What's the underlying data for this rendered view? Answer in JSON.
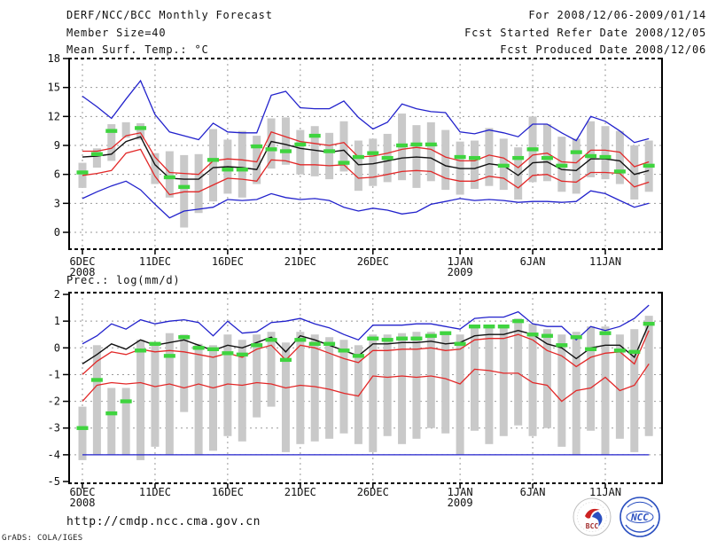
{
  "header": {
    "left": [
      "DERF/NCC/BCC Monthly Forecast",
      "Member Size=40",
      "Mean Surf. Temp.: °C"
    ],
    "right": [
      "For 2008/12/06-2009/01/14",
      "Fcst Started Refer Date 2008/12/05",
      "Fcst Produced Date 2008/12/06"
    ]
  },
  "footer": {
    "url": "http://cmdp.ncc.cma.gov.cn",
    "credit": "GrADS: COLA/IGES",
    "logos": [
      "BCC",
      "NCC"
    ]
  },
  "colors": {
    "blue": "#2222cc",
    "red": "#e22828",
    "black": "#111111",
    "green": "#3fd43f",
    "bar": "#c9c9c9",
    "grid": "#999999",
    "frame": "#000000",
    "logo_blue": "#2a4fc0",
    "logo_red": "#cc2222"
  },
  "chart_data": [
    {
      "type": "line",
      "title": "Mean Surf. Temp.: °C",
      "xlabel": "",
      "ylabel": "Mean Surf. Temp.: °C",
      "ylim": [
        -1.7,
        18
      ],
      "yticks": [
        0,
        3,
        6,
        9,
        12,
        15,
        18
      ],
      "grid": true,
      "legend": "none",
      "x": [
        "6DEC",
        "7DEC",
        "8DEC",
        "9DEC",
        "10DEC",
        "11DEC",
        "12DEC",
        "13DEC",
        "14DEC",
        "15DEC",
        "16DEC",
        "17DEC",
        "18DEC",
        "19DEC",
        "20DEC",
        "21DEC",
        "22DEC",
        "23DEC",
        "24DEC",
        "25DEC",
        "26DEC",
        "27DEC",
        "28DEC",
        "29DEC",
        "30DEC",
        "31DEC",
        "1JAN",
        "2JAN",
        "3JAN",
        "4JAN",
        "5JAN",
        "6JAN",
        "7JAN",
        "8JAN",
        "9JAN",
        "10JAN",
        "11JAN",
        "12JAN",
        "13JAN",
        "14JAN"
      ],
      "xticks": [
        {
          "label": "6DEC",
          "sub": "2008",
          "day": 0
        },
        {
          "label": "11DEC",
          "day": 5
        },
        {
          "label": "16DEC",
          "day": 10
        },
        {
          "label": "21DEC",
          "day": 15
        },
        {
          "label": "26DEC",
          "day": 20
        },
        {
          "label": "1JAN",
          "sub": "2009",
          "day": 26
        },
        {
          "label": "6JAN",
          "day": 31
        },
        {
          "label": "11JAN",
          "day": 36
        }
      ],
      "series": [
        {
          "name": "upper-envelope",
          "color_key": "blue",
          "values": [
            14.1,
            13.0,
            11.8,
            13.8,
            15.7,
            12.2,
            10.4,
            10.0,
            9.6,
            11.3,
            10.4,
            10.3,
            10.3,
            14.2,
            14.6,
            12.9,
            12.8,
            12.8,
            13.6,
            11.9,
            10.7,
            11.4,
            13.3,
            12.8,
            12.5,
            12.4,
            10.4,
            10.2,
            10.6,
            10.3,
            9.9,
            11.2,
            11.2,
            10.3,
            9.5,
            12.0,
            11.5,
            10.5,
            9.3,
            9.7
          ]
        },
        {
          "name": "upper-tercile",
          "color_key": "red",
          "values": [
            8.4,
            8.4,
            8.7,
            10.0,
            10.3,
            7.8,
            6.2,
            6.1,
            6.0,
            7.4,
            7.6,
            7.5,
            7.3,
            10.4,
            9.9,
            9.4,
            9.2,
            9.0,
            9.3,
            7.8,
            7.9,
            8.2,
            8.6,
            8.8,
            8.6,
            7.8,
            7.4,
            7.4,
            8.0,
            7.7,
            6.7,
            8.0,
            8.2,
            7.3,
            7.2,
            8.5,
            8.5,
            8.3,
            6.8,
            7.3
          ]
        },
        {
          "name": "ensemble-mean",
          "color_key": "black",
          "values": [
            7.8,
            7.9,
            8.1,
            9.4,
            9.9,
            7.0,
            5.6,
            5.5,
            5.5,
            6.7,
            6.8,
            6.7,
            6.5,
            9.4,
            9.1,
            8.7,
            8.5,
            8.3,
            8.5,
            7.0,
            7.1,
            7.4,
            7.7,
            7.8,
            7.7,
            6.9,
            6.6,
            6.6,
            7.1,
            6.9,
            5.9,
            7.2,
            7.3,
            6.5,
            6.4,
            7.6,
            7.6,
            7.4,
            6.0,
            6.4
          ]
        },
        {
          "name": "lower-tercile",
          "color_key": "red",
          "values": [
            5.9,
            6.1,
            6.4,
            8.2,
            8.6,
            5.8,
            3.9,
            4.2,
            4.2,
            4.9,
            5.6,
            5.5,
            5.3,
            7.5,
            7.4,
            7.0,
            7.0,
            6.9,
            7.0,
            5.6,
            5.7,
            6.0,
            6.3,
            6.4,
            6.3,
            5.6,
            5.3,
            5.3,
            5.8,
            5.6,
            4.6,
            5.9,
            6.0,
            5.3,
            5.2,
            6.2,
            6.2,
            6.1,
            4.7,
            5.2
          ]
        },
        {
          "name": "lower-envelope",
          "color_key": "blue",
          "values": [
            3.5,
            4.2,
            4.8,
            5.3,
            4.4,
            2.9,
            1.5,
            2.2,
            2.4,
            2.6,
            3.4,
            3.3,
            3.4,
            4.0,
            3.6,
            3.4,
            3.5,
            3.3,
            2.6,
            2.2,
            2.5,
            2.3,
            1.9,
            2.1,
            2.9,
            3.2,
            3.5,
            3.3,
            3.4,
            3.3,
            3.1,
            3.2,
            3.2,
            3.1,
            3.2,
            4.3,
            4.0,
            3.3,
            2.6,
            3.0
          ]
        }
      ],
      "observation_marks": {
        "name": "green-dash-marks",
        "color_key": "green",
        "values": [
          6.2,
          8.1,
          10.5,
          null,
          10.8,
          null,
          5.7,
          4.7,
          null,
          7.5,
          6.5,
          6.5,
          8.9,
          8.6,
          8.4,
          9.1,
          10.0,
          8.4,
          7.2,
          7.8,
          8.2,
          7.7,
          9.0,
          9.1,
          9.1,
          null,
          7.8,
          7.7,
          null,
          6.9,
          7.7,
          8.6,
          7.7,
          6.9,
          8.3,
          7.9,
          7.8,
          6.3,
          null,
          6.9
        ]
      },
      "spread_bars": [
        [
          4.6,
          7.2
        ],
        [
          6.7,
          8.7
        ],
        [
          7.4,
          11.2
        ],
        [
          9.8,
          11.4
        ],
        [
          9.6,
          11.3
        ],
        [
          5.0,
          8.2
        ],
        [
          3.6,
          8.4
        ],
        [
          0.5,
          8.0
        ],
        [
          2.0,
          8.1
        ],
        [
          3.2,
          10.7
        ],
        [
          4.0,
          9.6
        ],
        [
          3.6,
          10.5
        ],
        [
          5.0,
          10.0
        ],
        [
          6.6,
          11.8
        ],
        [
          7.0,
          11.9
        ],
        [
          6.0,
          10.6
        ],
        [
          5.8,
          11.0
        ],
        [
          5.5,
          10.3
        ],
        [
          6.3,
          11.5
        ],
        [
          4.3,
          9.5
        ],
        [
          4.8,
          9.7
        ],
        [
          5.2,
          10.2
        ],
        [
          5.4,
          12.3
        ],
        [
          4.6,
          11.1
        ],
        [
          5.3,
          11.4
        ],
        [
          4.4,
          10.6
        ],
        [
          3.9,
          9.4
        ],
        [
          4.5,
          9.5
        ],
        [
          4.8,
          10.8
        ],
        [
          4.4,
          9.7
        ],
        [
          3.4,
          8.8
        ],
        [
          5.2,
          12.0
        ],
        [
          5.3,
          11.2
        ],
        [
          4.2,
          9.9
        ],
        [
          4.0,
          9.7
        ],
        [
          5.7,
          11.5
        ],
        [
          5.5,
          11.0
        ],
        [
          5.0,
          10.5
        ],
        [
          3.4,
          9.0
        ],
        [
          4.2,
          9.5
        ]
      ]
    },
    {
      "type": "line",
      "title": "Prec.: log(mm/d)",
      "xlabel": "",
      "ylabel": "Prec.: log(mm/d)",
      "ylim": [
        -5.1,
        2.1
      ],
      "yticks": [
        -5,
        -4,
        -3,
        -2,
        -1,
        0,
        1,
        2
      ],
      "grid": true,
      "legend": "none",
      "x": [
        "6DEC",
        "7DEC",
        "8DEC",
        "9DEC",
        "10DEC",
        "11DEC",
        "12DEC",
        "13DEC",
        "14DEC",
        "15DEC",
        "16DEC",
        "17DEC",
        "18DEC",
        "19DEC",
        "20DEC",
        "21DEC",
        "22DEC",
        "23DEC",
        "24DEC",
        "25DEC",
        "26DEC",
        "27DEC",
        "28DEC",
        "29DEC",
        "30DEC",
        "31DEC",
        "1JAN",
        "2JAN",
        "3JAN",
        "4JAN",
        "5JAN",
        "6JAN",
        "7JAN",
        "8JAN",
        "9JAN",
        "10JAN",
        "11JAN",
        "12JAN",
        "13JAN",
        "14JAN"
      ],
      "xticks": [
        {
          "label": "6DEC",
          "sub": "2008",
          "day": 0
        },
        {
          "label": "11DEC",
          "day": 5
        },
        {
          "label": "16DEC",
          "day": 10
        },
        {
          "label": "21DEC",
          "day": 15
        },
        {
          "label": "26DEC",
          "day": 20
        },
        {
          "label": "1JAN",
          "sub": "2009",
          "day": 26
        },
        {
          "label": "6JAN",
          "day": 31
        },
        {
          "label": "11JAN",
          "day": 36
        }
      ],
      "series": [
        {
          "name": "upper-envelope",
          "color_key": "blue",
          "values": [
            0.15,
            0.45,
            0.9,
            0.7,
            1.05,
            0.9,
            1.0,
            1.05,
            0.95,
            0.45,
            1.0,
            0.55,
            0.6,
            0.95,
            1.0,
            1.1,
            0.9,
            0.75,
            0.5,
            0.3,
            0.85,
            0.85,
            0.85,
            0.9,
            0.9,
            0.8,
            0.7,
            1.1,
            1.15,
            1.15,
            1.35,
            0.9,
            0.8,
            0.8,
            0.3,
            0.8,
            0.65,
            0.8,
            1.1,
            1.6
          ]
        },
        {
          "name": "ensemble-mean",
          "color_key": "black",
          "values": [
            -0.6,
            -0.25,
            0.15,
            -0.05,
            0.3,
            0.1,
            0.2,
            0.3,
            0.1,
            -0.1,
            0.1,
            0.0,
            0.2,
            0.4,
            -0.15,
            0.45,
            0.3,
            0.1,
            -0.1,
            -0.3,
            0.15,
            0.15,
            0.2,
            0.2,
            0.25,
            0.15,
            0.2,
            0.45,
            0.5,
            0.5,
            0.65,
            0.5,
            0.15,
            0.0,
            -0.4,
            0.0,
            0.1,
            0.1,
            -0.35,
            0.9
          ]
        },
        {
          "name": "upper-tercile",
          "color_key": "red",
          "values": [
            -1.0,
            -0.5,
            -0.15,
            -0.25,
            -0.05,
            -0.15,
            -0.1,
            -0.15,
            -0.25,
            -0.35,
            -0.2,
            -0.35,
            -0.05,
            0.1,
            -0.45,
            0.1,
            0.0,
            -0.2,
            -0.4,
            -0.55,
            -0.1,
            -0.1,
            -0.05,
            -0.05,
            0.0,
            -0.1,
            -0.05,
            0.3,
            0.35,
            0.35,
            0.5,
            0.3,
            -0.1,
            -0.3,
            -0.7,
            -0.35,
            -0.2,
            -0.15,
            -0.6,
            0.65
          ]
        },
        {
          "name": "lower-tercile",
          "color_key": "red",
          "values": [
            -2.0,
            -1.4,
            -1.3,
            -1.35,
            -1.3,
            -1.45,
            -1.35,
            -1.5,
            -1.35,
            -1.5,
            -1.35,
            -1.4,
            -1.3,
            -1.35,
            -1.5,
            -1.4,
            -1.45,
            -1.55,
            -1.7,
            -1.8,
            -1.05,
            -1.1,
            -1.05,
            -1.1,
            -1.05,
            -1.15,
            -1.35,
            -0.8,
            -0.85,
            -0.95,
            -0.95,
            -1.3,
            -1.4,
            -2.0,
            -1.6,
            -1.5,
            -1.1,
            -1.6,
            -1.4,
            -0.6
          ]
        },
        {
          "name": "lower-envelope",
          "color_key": "blue",
          "values": [
            -4.0,
            -4.0,
            -4.0,
            -4.0,
            -4.0,
            -4.0,
            -4.0,
            -4.0,
            -4.0,
            -4.0,
            -4.0,
            -4.0,
            -4.0,
            -4.0,
            -4.0,
            -4.0,
            -4.0,
            -4.0,
            -4.0,
            -4.0,
            -4.0,
            -4.0,
            -4.0,
            -4.0,
            -4.0,
            -4.0,
            -4.0,
            -4.0,
            -4.0,
            -4.0,
            -4.0,
            -4.0,
            -4.0,
            -4.0,
            -4.0,
            -4.0,
            -4.0,
            -4.0,
            -4.0,
            -4.0
          ]
        }
      ],
      "observation_marks": {
        "name": "green-dash-marks",
        "color_key": "green",
        "values": [
          -3.0,
          -1.2,
          -2.45,
          -2.0,
          -0.1,
          0.15,
          -0.3,
          0.4,
          0.0,
          -0.05,
          -0.2,
          -0.25,
          0.1,
          0.3,
          -0.45,
          0.3,
          0.15,
          0.15,
          -0.1,
          -0.3,
          0.35,
          0.3,
          0.35,
          0.35,
          0.45,
          0.55,
          0.15,
          0.8,
          0.8,
          0.8,
          1.0,
          0.5,
          0.45,
          0.1,
          0.4,
          -0.05,
          0.55,
          -0.1,
          -0.15,
          0.9
        ]
      },
      "spread_bars": [
        [
          -4.2,
          -2.2
        ],
        [
          -4.0,
          0.1
        ],
        [
          -4.0,
          -1.5
        ],
        [
          -4.0,
          -1.5
        ],
        [
          -4.2,
          0.3
        ],
        [
          -3.7,
          0.1
        ],
        [
          -4.0,
          0.55
        ],
        [
          -2.4,
          0.5
        ],
        [
          -4.0,
          0.15
        ],
        [
          -3.85,
          0.1
        ],
        [
          -3.3,
          0.5
        ],
        [
          -3.5,
          0.3
        ],
        [
          -2.6,
          0.5
        ],
        [
          -2.2,
          0.6
        ],
        [
          -3.9,
          0.2
        ],
        [
          -3.6,
          0.6
        ],
        [
          -3.5,
          0.5
        ],
        [
          -3.4,
          0.4
        ],
        [
          -3.2,
          0.3
        ],
        [
          -3.6,
          0.1
        ],
        [
          -3.9,
          0.5
        ],
        [
          -3.3,
          0.5
        ],
        [
          -3.6,
          0.55
        ],
        [
          -3.4,
          0.6
        ],
        [
          -3.0,
          0.6
        ],
        [
          -3.2,
          0.6
        ],
        [
          -4.0,
          0.5
        ],
        [
          -3.1,
          0.8
        ],
        [
          -3.6,
          0.85
        ],
        [
          -3.3,
          0.85
        ],
        [
          -2.9,
          1.1
        ],
        [
          -3.3,
          0.9
        ],
        [
          -3.0,
          0.7
        ],
        [
          -3.7,
          0.5
        ],
        [
          -4.0,
          0.6
        ],
        [
          -3.1,
          0.8
        ],
        [
          -4.0,
          0.8
        ],
        [
          -3.4,
          0.5
        ],
        [
          -3.9,
          0.7
        ],
        [
          -3.3,
          1.2
        ]
      ]
    }
  ]
}
